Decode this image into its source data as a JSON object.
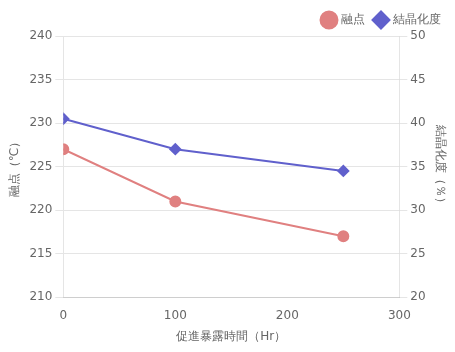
{
  "chart_data": {
    "type": "line",
    "x": [
      0,
      100,
      250
    ],
    "xlabel": "促進暴露時間（Hr）",
    "ylabel": "融点（℃）",
    "y2label": "結晶化度（％）",
    "xlim": [
      0,
      300
    ],
    "xticks": [
      0,
      100,
      200,
      300
    ],
    "ylim": [
      210,
      240
    ],
    "yticks": [
      210,
      215,
      220,
      225,
      230,
      235,
      240
    ],
    "y2lim": [
      20,
      50
    ],
    "y2ticks": [
      20,
      25,
      30,
      35,
      40,
      45,
      50
    ],
    "grid": true,
    "legend": "upper right",
    "series": [
      {
        "name": "融点",
        "color": "#e08080",
        "marker": "circle",
        "values": [
          227,
          221,
          217
        ]
      },
      {
        "name": "結晶化度",
        "color": "#6060cc",
        "marker": "diamond",
        "values": [
          40.5,
          37.0,
          34.5
        ],
        "axis": "y2"
      }
    ]
  }
}
